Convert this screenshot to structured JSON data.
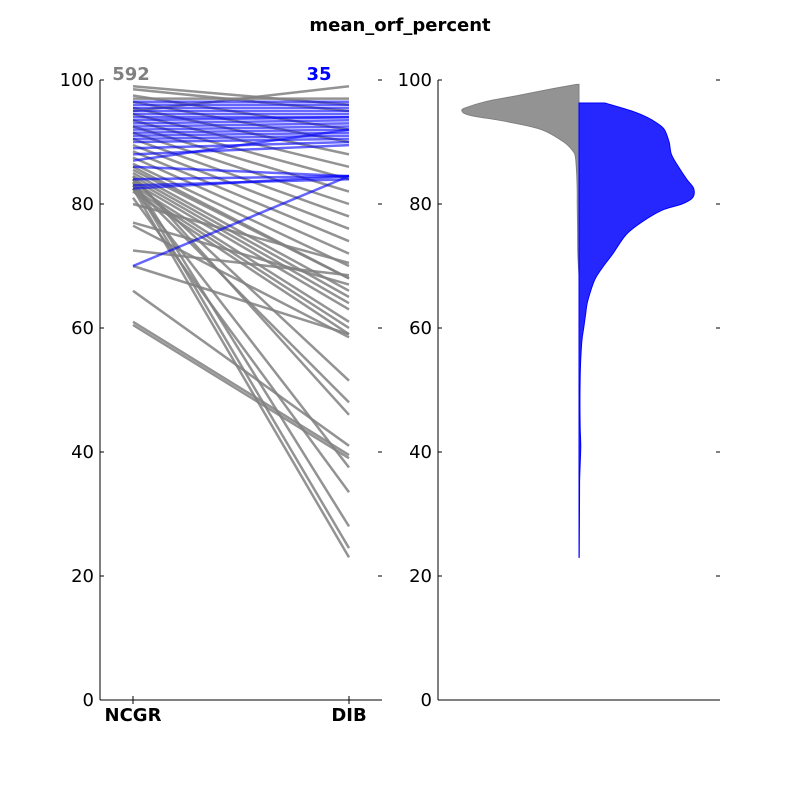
{
  "title": "mean_orf_percent",
  "chart_data": [
    {
      "type": "line",
      "categories": [
        "NCGR",
        "DIB"
      ],
      "ylim": [
        0,
        100
      ],
      "yticks": [
        0,
        20,
        40,
        60,
        80,
        100
      ],
      "grid": false,
      "series": [
        {
          "label": "592",
          "color": "#808080",
          "pairs": [
            [
              99,
              96
            ],
            [
              98.5,
              95
            ],
            [
              97.5,
              92
            ],
            [
              96.5,
              90
            ],
            [
              95.5,
              88
            ],
            [
              94.5,
              86
            ],
            [
              93.5,
              84
            ],
            [
              92.5,
              82
            ],
            [
              91.5,
              80
            ],
            [
              90.5,
              78
            ],
            [
              89.5,
              76
            ],
            [
              88.5,
              74
            ],
            [
              87.5,
              72
            ],
            [
              86.5,
              70
            ],
            [
              85.5,
              68
            ],
            [
              85,
              66
            ],
            [
              84.5,
              65
            ],
            [
              84,
              64
            ],
            [
              83.5,
              63
            ],
            [
              83,
              61
            ],
            [
              82.5,
              60
            ],
            [
              82,
              59
            ],
            [
              80,
              70.5
            ],
            [
              77,
              67
            ],
            [
              76.5,
              58.5
            ],
            [
              72.5,
              68.5
            ],
            [
              70,
              59
            ],
            [
              66,
              41
            ],
            [
              61,
              39.5
            ],
            [
              60.5,
              39
            ],
            [
              84,
              51.5
            ],
            [
              83,
              48
            ],
            [
              84.5,
              46
            ],
            [
              82.5,
              37.5
            ],
            [
              81,
              33.5
            ],
            [
              84,
              28
            ],
            [
              83.5,
              24.5
            ],
            [
              82.5,
              23
            ],
            [
              86,
              68
            ],
            [
              95,
              99
            ],
            [
              97,
              97
            ]
          ]
        },
        {
          "label": "35",
          "color": "#0000ff",
          "pairs": [
            [
              96.5,
              96.5
            ],
            [
              96,
              96
            ],
            [
              95.5,
              95.5
            ],
            [
              95,
              95
            ],
            [
              94.5,
              94.5
            ],
            [
              94,
              94
            ],
            [
              93.5,
              94
            ],
            [
              93,
              93.5
            ],
            [
              92.5,
              93
            ],
            [
              92,
              92.5
            ],
            [
              91.5,
              92
            ],
            [
              91,
              91.5
            ],
            [
              90.5,
              91
            ],
            [
              90,
              90.5
            ],
            [
              89,
              90
            ],
            [
              88,
              89.5
            ],
            [
              87,
              92
            ],
            [
              86,
              84.5
            ],
            [
              84,
              84.5
            ],
            [
              83,
              84
            ],
            [
              82.5,
              84.5
            ],
            [
              70,
              84.5
            ]
          ]
        }
      ]
    },
    {
      "type": "violin",
      "ylim": [
        0,
        100
      ],
      "yticks": [
        0,
        20,
        40,
        60,
        80,
        100
      ],
      "series": [
        {
          "name": "NCGR",
          "side": "left",
          "color": "#808080",
          "density": [
            [
              99.3,
              0.02
            ],
            [
              98.5,
              0.25
            ],
            [
              97.5,
              0.52
            ],
            [
              96.5,
              0.8
            ],
            [
              95.5,
              0.97
            ],
            [
              95,
              1.0
            ],
            [
              94.3,
              0.93
            ],
            [
              93.3,
              0.62
            ],
            [
              92,
              0.32
            ],
            [
              90,
              0.13
            ],
            [
              88.5,
              0.05
            ],
            [
              87.5,
              0.03
            ],
            [
              85,
              0.02
            ],
            [
              82,
              0.015
            ],
            [
              80,
              0.015
            ],
            [
              76,
              0.012
            ],
            [
              72,
              0.01
            ],
            [
              68.5,
              0.0
            ]
          ]
        },
        {
          "name": "DIB",
          "side": "right",
          "color": "#0000ff",
          "density": [
            [
              96.3,
              0.22
            ],
            [
              95,
              0.45
            ],
            [
              94,
              0.58
            ],
            [
              93,
              0.67
            ],
            [
              92,
              0.73
            ],
            [
              90,
              0.77
            ],
            [
              88,
              0.79
            ],
            [
              86,
              0.85
            ],
            [
              84,
              0.92
            ],
            [
              82.5,
              0.98
            ],
            [
              81,
              0.97
            ],
            [
              80,
              0.88
            ],
            [
              79,
              0.71
            ],
            [
              77,
              0.53
            ],
            [
              75,
              0.4
            ],
            [
              72,
              0.29
            ],
            [
              70,
              0.21
            ],
            [
              68,
              0.14
            ],
            [
              66,
              0.1
            ],
            [
              64,
              0.07
            ],
            [
              62,
              0.055
            ],
            [
              60,
              0.04
            ],
            [
              58,
              0.025
            ],
            [
              55,
              0.015
            ],
            [
              52,
              0.01
            ],
            [
              48,
              0.008
            ],
            [
              44,
              0.01
            ],
            [
              41,
              0.015
            ],
            [
              38,
              0.01
            ],
            [
              35,
              0.005
            ],
            [
              30,
              0.004
            ],
            [
              23,
              0.002
            ]
          ]
        }
      ]
    }
  ]
}
